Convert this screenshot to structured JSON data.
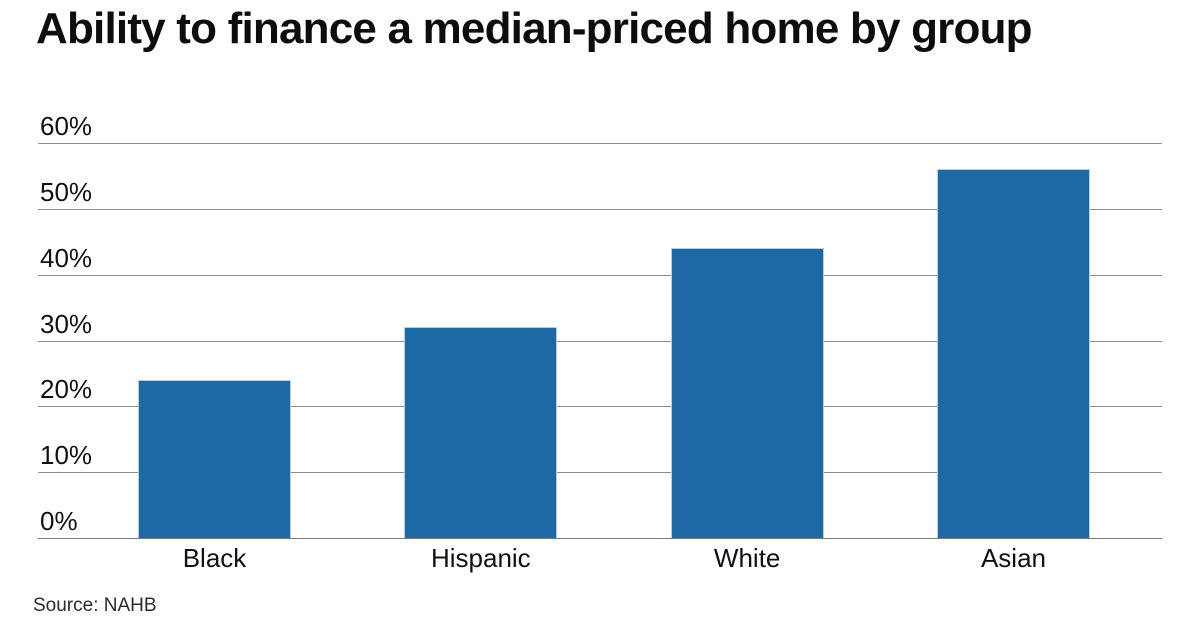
{
  "chart_data": {
    "type": "bar",
    "title": "Ability to finance a median-priced home by group",
    "categories": [
      "Black",
      "Hispanic",
      "White",
      "Asian"
    ],
    "values": [
      24,
      32,
      44,
      56
    ],
    "unit": "%",
    "ylim": [
      0,
      60
    ],
    "ytick_step": 10,
    "ytick_labels": [
      "0%",
      "10%",
      "20%",
      "30%",
      "40%",
      "50%",
      "60%"
    ],
    "grid": "horizontal-only",
    "legend": "none",
    "bar_color": "#1c69a4",
    "source": "Source: NAHB"
  }
}
